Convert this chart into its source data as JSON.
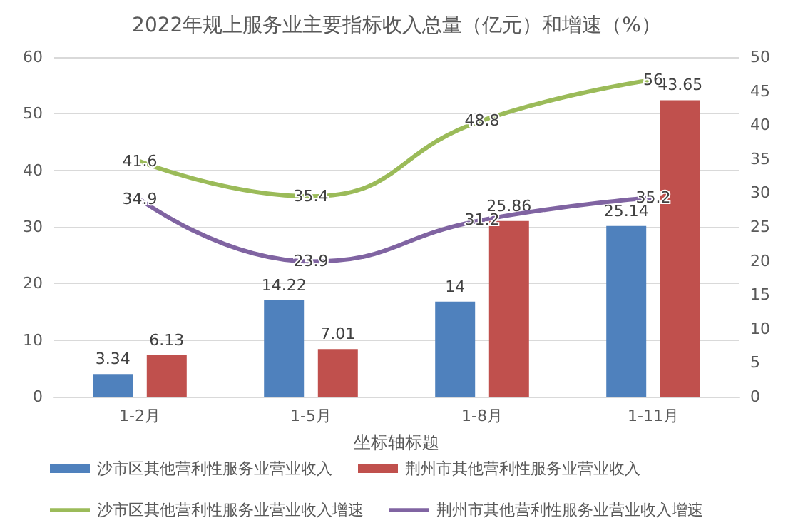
{
  "chart_data": {
    "type": "bar",
    "title": "2022年规上服务业主要指标收入总量（亿元）和增速（%）",
    "xlabel": "坐标轴标题",
    "categories": [
      "1-2月",
      "1-5月",
      "1-8月",
      "1-11月"
    ],
    "series": [
      {
        "name": "沙市区其他营利性服务业营业收入",
        "axis": "y2",
        "color": "#4f81bd",
        "values": [
          3.34,
          14.22,
          14,
          25.14
        ]
      },
      {
        "name": "荆州市其他营利性服务业营业收入",
        "axis": "y2",
        "color": "#c0504d",
        "values": [
          6.13,
          7.01,
          25.86,
          43.65
        ]
      },
      {
        "name": "沙市区其他营利性服务业营业收入增速",
        "type": "line",
        "axis": "y",
        "color": "#9bbb59",
        "values": [
          41.6,
          35.4,
          48.8,
          56
        ]
      },
      {
        "name": "荆州市其他营利性服务业营业收入增速",
        "type": "line",
        "axis": "y",
        "color": "#8064a2",
        "values": [
          34.9,
          23.9,
          31.2,
          35.2
        ]
      }
    ],
    "ylim": [
      0,
      60
    ],
    "yticks": [
      0,
      10,
      20,
      30,
      40,
      50,
      60
    ],
    "y2lim": [
      0,
      50
    ],
    "y2ticks": [
      0,
      5,
      10,
      15,
      20,
      25,
      30,
      35,
      40,
      45,
      50
    ],
    "grid": "y",
    "legend": "bottom",
    "marker": "none",
    "data_labels": true
  }
}
